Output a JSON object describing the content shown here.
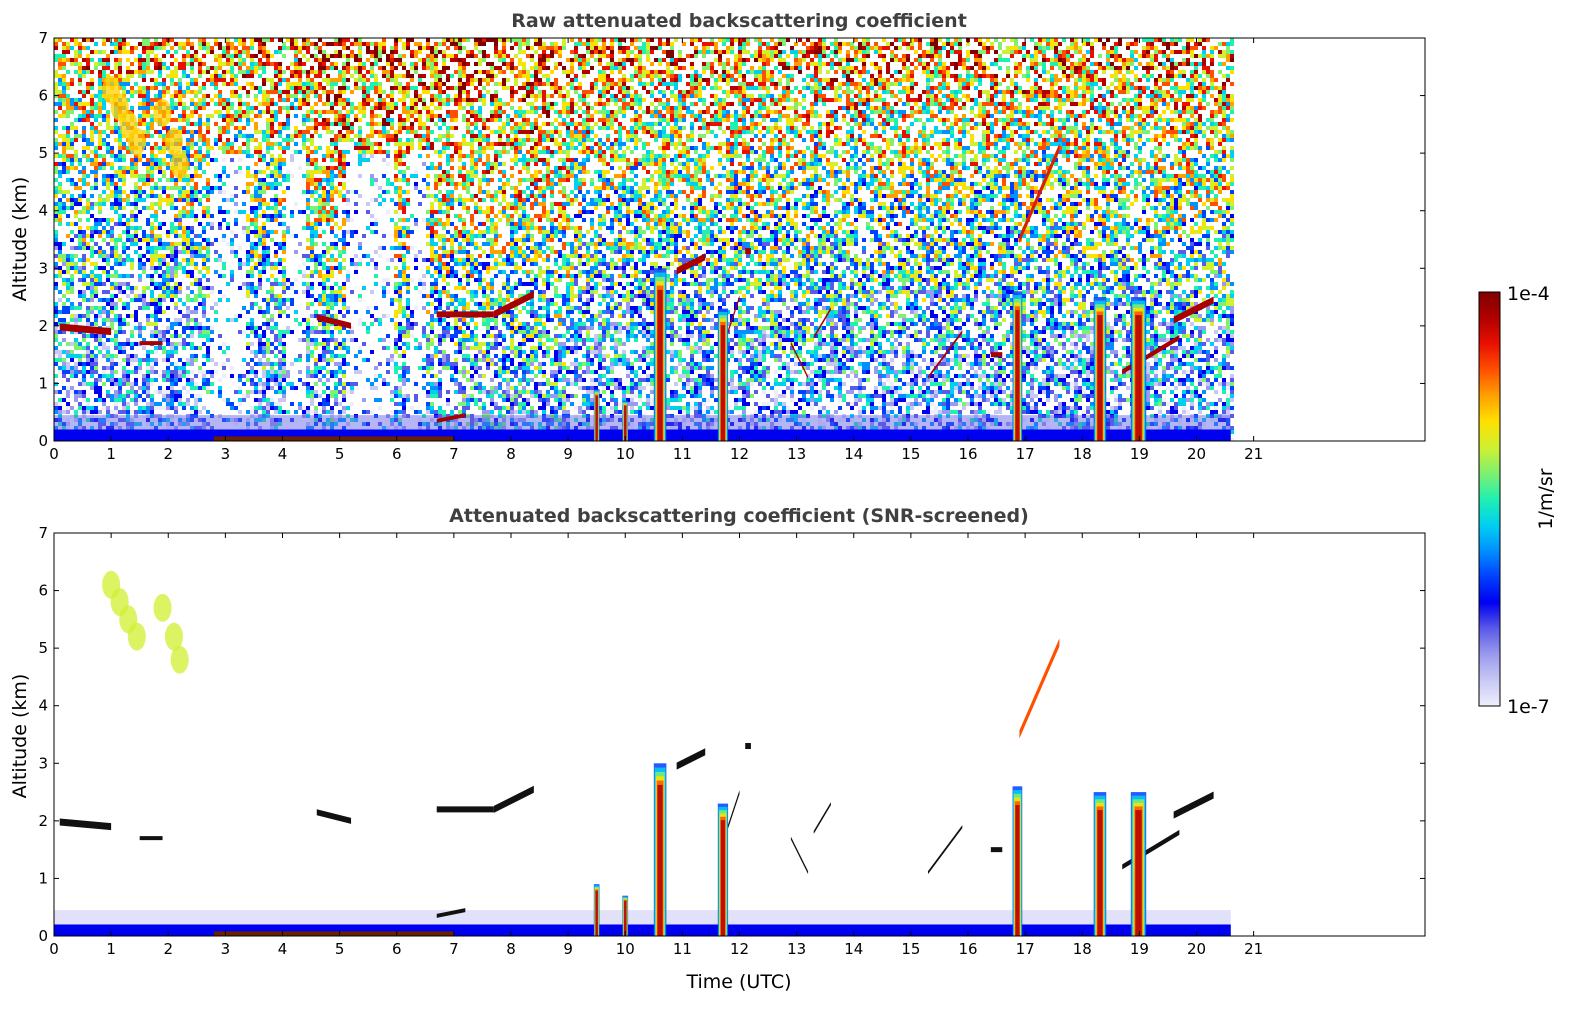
{
  "chart_data": [
    {
      "type": "heatmap",
      "title": "Raw attenuated backscattering coefficient",
      "xlabel": "",
      "ylabel": "Altitude (km)",
      "xlim": [
        0,
        24
      ],
      "ylim": [
        0,
        7
      ],
      "xticks": [
        "0",
        "1",
        "2",
        "3",
        "4",
        "5",
        "6",
        "7",
        "8",
        "9",
        "10",
        "11",
        "12",
        "13",
        "14",
        "15",
        "16",
        "17",
        "18",
        "19",
        "20",
        "21"
      ],
      "yticks": [
        "0",
        "1",
        "2",
        "3",
        "4",
        "5",
        "6",
        "7"
      ],
      "data_end_hour": 20.6,
      "features": [
        {
          "kind": "cloud",
          "x": [
            0.1,
            1.0
          ],
          "y": [
            1.85,
            2.1
          ],
          "level": "high"
        },
        {
          "kind": "cloud",
          "x": [
            4.6,
            5.2
          ],
          "y": [
            2.0,
            2.2
          ],
          "level": "high"
        },
        {
          "kind": "cloud",
          "x": [
            6.7,
            8.4
          ],
          "y": [
            2.1,
            2.6
          ],
          "level": "high"
        },
        {
          "kind": "cloud",
          "x": [
            10.9,
            11.4
          ],
          "y": [
            2.9,
            3.3
          ],
          "level": "high"
        },
        {
          "kind": "cloud",
          "x": [
            16.9,
            17.6
          ],
          "y": [
            3.5,
            5.1
          ],
          "level": "high"
        },
        {
          "kind": "cloud",
          "x": [
            19.3,
            20.3
          ],
          "y": [
            1.5,
            2.5
          ],
          "level": "high"
        },
        {
          "kind": "plume",
          "x": [
            0.9,
            2.3
          ],
          "y": [
            4.5,
            6.3
          ],
          "level": "mid"
        },
        {
          "kind": "column",
          "x": [
            10.5,
            10.7
          ],
          "y": [
            0,
            3.0
          ],
          "level": "high"
        },
        {
          "kind": "column",
          "x": [
            11.65,
            11.8
          ],
          "y": [
            0,
            2.3
          ],
          "level": "mid"
        },
        {
          "kind": "column",
          "x": [
            16.8,
            16.95
          ],
          "y": [
            0,
            2.6
          ],
          "level": "mid"
        },
        {
          "kind": "column",
          "x": [
            18.2,
            18.4
          ],
          "y": [
            0,
            2.5
          ],
          "level": "mid"
        },
        {
          "kind": "column",
          "x": [
            18.9,
            19.1
          ],
          "y": [
            0,
            2.5
          ],
          "level": "mid"
        },
        {
          "kind": "boundary_layer",
          "x": [
            0,
            20.6
          ],
          "y": [
            0,
            0.4
          ],
          "level": "low"
        }
      ]
    },
    {
      "type": "heatmap",
      "title": "Attenuated backscattering coefficient (SNR-screened)",
      "xlabel": "Time (UTC)",
      "ylabel": "Altitude (km)",
      "xlim": [
        0,
        24
      ],
      "ylim": [
        0,
        7
      ],
      "xticks": [
        "0",
        "1",
        "2",
        "3",
        "4",
        "5",
        "6",
        "7",
        "8",
        "9",
        "10",
        "11",
        "12",
        "13",
        "14",
        "15",
        "16",
        "17",
        "18",
        "19",
        "20",
        "21"
      ],
      "yticks": [
        "0",
        "1",
        "2",
        "3",
        "4",
        "5",
        "6",
        "7"
      ],
      "data_end_hour": 20.6
    }
  ],
  "colorbar": {
    "max_label": "1e-4",
    "min_label": "1e-7",
    "unit_label": "1/m/sr",
    "colors": [
      "#eeeefb",
      "#c8c8f5",
      "#9a9aee",
      "#5a5ae8",
      "#0000f0",
      "#0040ff",
      "#0090ff",
      "#00d0f0",
      "#20f0b0",
      "#80f070",
      "#d0f030",
      "#ffe000",
      "#ffa000",
      "#ff5000",
      "#e81000",
      "#b00000",
      "#800000"
    ]
  }
}
